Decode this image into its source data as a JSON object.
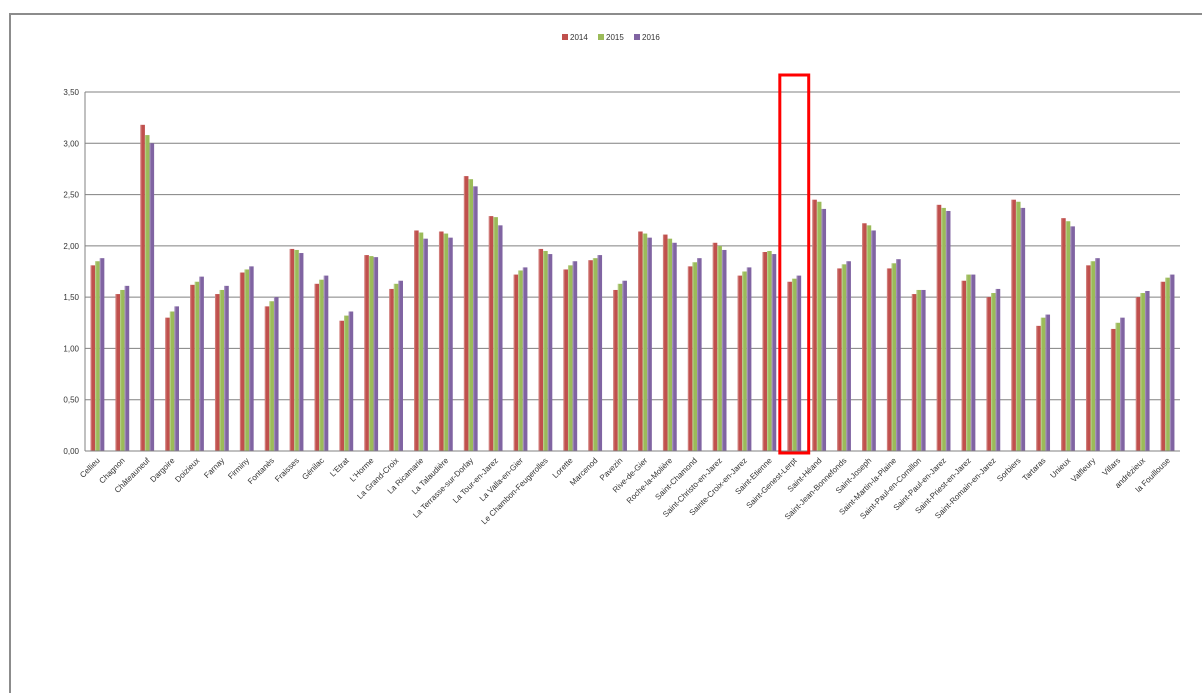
{
  "chart_data": {
    "type": "bar",
    "categories": [
      "Cellieu",
      "Chagnon",
      "Châteauneuf",
      "Dargoire",
      "Doizieux",
      "Farnay",
      "Firminy",
      "Fontanès",
      "Fraisses",
      "Génilac",
      "L'Etrat",
      "L'Horme",
      "La Grand-Croix",
      "La Ricamarie",
      "La Talaudière",
      "La Terrasse-sur-Dorlay",
      "La Tour-en-Jarez",
      "La Valla-en-Gier",
      "Le Chambon-Feugerolles",
      "Lorette",
      "Marcenod",
      "Pavezin",
      "Rive-de-Gier",
      "Roche-la-Molière",
      "Saint-Chamond",
      "Saint-Christo-en-Jarez",
      "Sainte-Croix-en-Jarez",
      "Saint-Etienne",
      "Saint-Genest-Lerpt",
      "Saint-Héand",
      "Saint-Jean-Bonnefonds",
      "Saint-Joseph",
      "Saint-Martin-la-Plaine",
      "Saint-Paul-en-Cornillon",
      "Saint-Paul-en-Jarez",
      "Saint-Priest-en-Jarez",
      "Saint-Romain-en-Jarez",
      "Sorbiers",
      "Tartaras",
      "Unieux",
      "Valfleury",
      "Villars",
      "andrézieux",
      "la Fouillouse"
    ],
    "series": [
      {
        "name": "2014",
        "color": "#c0504d",
        "values": [
          1.81,
          1.53,
          3.18,
          1.3,
          1.62,
          1.53,
          1.74,
          1.41,
          1.97,
          1.63,
          1.27,
          1.91,
          1.58,
          2.15,
          2.14,
          2.68,
          2.29,
          1.72,
          1.97,
          1.77,
          1.86,
          1.57,
          2.14,
          2.11,
          1.8,
          2.03,
          1.71,
          1.94,
          1.65,
          2.45,
          1.78,
          2.22,
          1.78,
          1.53,
          2.4,
          1.66,
          1.5,
          2.45,
          1.22,
          2.27,
          1.81,
          1.19,
          1.5,
          1.65
        ]
      },
      {
        "name": "2015",
        "color": "#9bbb59",
        "values": [
          1.85,
          1.57,
          3.08,
          1.36,
          1.65,
          1.57,
          1.77,
          1.46,
          1.96,
          1.67,
          1.32,
          1.9,
          1.63,
          2.13,
          2.12,
          2.65,
          2.28,
          1.76,
          1.95,
          1.81,
          1.88,
          1.63,
          2.12,
          2.07,
          1.84,
          2.0,
          1.75,
          1.95,
          1.68,
          2.43,
          1.82,
          2.2,
          1.83,
          1.57,
          2.37,
          1.72,
          1.54,
          2.43,
          1.3,
          2.24,
          1.85,
          1.25,
          1.54,
          1.69
        ]
      },
      {
        "name": "2016",
        "color": "#8064a2",
        "values": [
          1.88,
          1.61,
          3.0,
          1.41,
          1.7,
          1.61,
          1.8,
          1.5,
          1.93,
          1.71,
          1.36,
          1.89,
          1.66,
          2.07,
          2.08,
          2.58,
          2.2,
          1.79,
          1.92,
          1.85,
          1.91,
          1.66,
          2.08,
          2.03,
          1.88,
          1.96,
          1.79,
          1.92,
          1.71,
          2.36,
          1.85,
          2.15,
          1.87,
          1.57,
          2.34,
          1.72,
          1.58,
          2.37,
          1.33,
          2.19,
          1.88,
          1.3,
          1.56,
          1.72
        ]
      }
    ],
    "yticks": [
      "0,00",
      "0,50",
      "1,00",
      "1,50",
      "2,00",
      "2,50",
      "3,00",
      "3,50"
    ],
    "ylim": [
      0,
      3.5
    ],
    "grid": true,
    "legend_position": "top-center",
    "highlight_category": "Saint-Genest-Lerpt",
    "highlight_color": "#ff0000"
  }
}
